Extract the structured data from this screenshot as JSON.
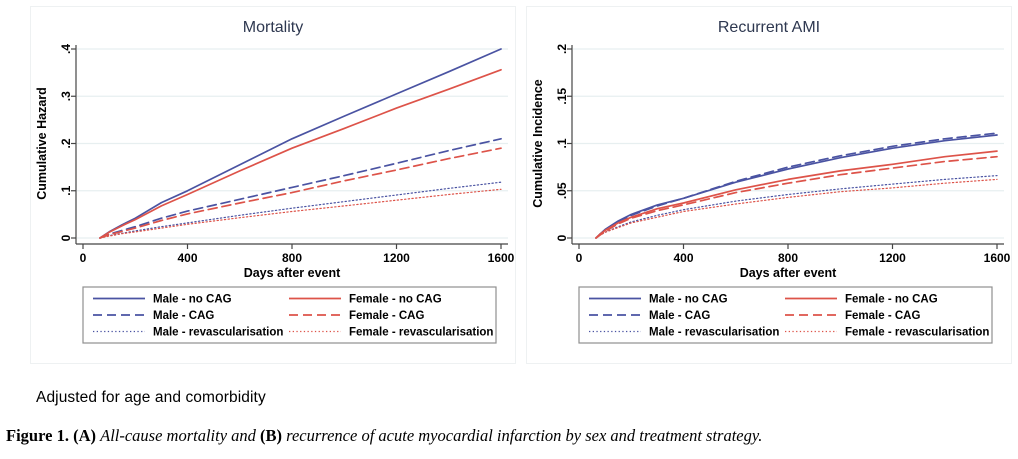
{
  "page": {
    "adjusted_note": "Adjusted for age and comorbidity",
    "caption": {
      "prefix": "Figure 1.",
      "part_a_label": "(A)",
      "part_a_text": "All-cause mortality and",
      "part_b_label": "(B)",
      "part_b_text": "recurrence of acute myocardial infarction by sex and treatment strategy."
    }
  },
  "colors": {
    "male_blue": "#4a53a2",
    "female_red": "#dd5349",
    "title_navy": "#2e3850",
    "grid": "#e7eff0",
    "axis": "#454545",
    "legend_border": "#8f8f8f"
  },
  "chart_data": [
    {
      "type": "line",
      "title": "Mortality",
      "xlabel": "Days after event",
      "ylabel": "Cumulative Hazard",
      "xlim": [
        0,
        1660
      ],
      "ylim": [
        0,
        0.4
      ],
      "xticks": [
        0,
        400,
        800,
        1200,
        1600
      ],
      "yticks": [
        0,
        0.1,
        0.2,
        0.3,
        0.4
      ],
      "ytick_labels": [
        "0",
        ".1",
        ".2",
        ".3",
        ".4"
      ],
      "grid": true,
      "legend_position": "bottom",
      "x": [
        65,
        100,
        150,
        200,
        300,
        400,
        600,
        800,
        1000,
        1200,
        1400,
        1600
      ],
      "series": [
        {
          "name": "Male - no CAG",
          "color": "#4a53a2",
          "style": "solid",
          "values": [
            0,
            0.013,
            0.028,
            0.042,
            0.075,
            0.1,
            0.155,
            0.21,
            0.258,
            0.305,
            0.352,
            0.4
          ]
        },
        {
          "name": "Male - CAG",
          "color": "#4a53a2",
          "style": "dashed",
          "values": [
            0,
            0.008,
            0.016,
            0.024,
            0.042,
            0.057,
            0.082,
            0.107,
            0.132,
            0.158,
            0.185,
            0.21
          ]
        },
        {
          "name": "Male - revascularisation",
          "color": "#4a53a2",
          "style": "dotted",
          "values": [
            0,
            0.005,
            0.01,
            0.015,
            0.024,
            0.032,
            0.048,
            0.063,
            0.077,
            0.091,
            0.105,
            0.118
          ]
        },
        {
          "name": "Female - no CAG",
          "color": "#dd5349",
          "style": "solid",
          "values": [
            0,
            0.012,
            0.026,
            0.039,
            0.068,
            0.092,
            0.142,
            0.19,
            0.232,
            0.275,
            0.315,
            0.356
          ]
        },
        {
          "name": "Female - CAG",
          "color": "#dd5349",
          "style": "dashed",
          "values": [
            0,
            0.007,
            0.014,
            0.021,
            0.037,
            0.051,
            0.074,
            0.096,
            0.121,
            0.144,
            0.168,
            0.19
          ]
        },
        {
          "name": "Female - revascularisation",
          "color": "#dd5349",
          "style": "dotted",
          "values": [
            0,
            0.004,
            0.009,
            0.013,
            0.021,
            0.029,
            0.043,
            0.056,
            0.068,
            0.08,
            0.092,
            0.103
          ]
        }
      ]
    },
    {
      "type": "line",
      "title": "Recurrent AMI",
      "xlabel": "Days after event",
      "ylabel": "Cumulative Incidence",
      "xlim": [
        0,
        1660
      ],
      "ylim": [
        0,
        0.2
      ],
      "xticks": [
        0,
        400,
        800,
        1200,
        1600
      ],
      "yticks": [
        0,
        0.05,
        0.1,
        0.15,
        0.2
      ],
      "ytick_labels": [
        "0",
        ".05",
        ".1",
        ".15",
        ".2"
      ],
      "grid": true,
      "legend_position": "bottom",
      "x": [
        65,
        80,
        100,
        150,
        200,
        300,
        400,
        600,
        800,
        1000,
        1200,
        1400,
        1600
      ],
      "series": [
        {
          "name": "Male - no CAG",
          "color": "#4a53a2",
          "style": "solid",
          "values": [
            0,
            0.004,
            0.009,
            0.018,
            0.025,
            0.035,
            0.042,
            0.059,
            0.073,
            0.085,
            0.095,
            0.103,
            0.109
          ]
        },
        {
          "name": "Male - CAG",
          "color": "#4a53a2",
          "style": "dashed",
          "values": [
            0,
            0.004,
            0.008,
            0.017,
            0.024,
            0.034,
            0.042,
            0.06,
            0.075,
            0.087,
            0.097,
            0.105,
            0.111
          ]
        },
        {
          "name": "Male - revascularisation",
          "color": "#4a53a2",
          "style": "dotted",
          "values": [
            0,
            0.003,
            0.006,
            0.012,
            0.017,
            0.024,
            0.03,
            0.039,
            0.046,
            0.052,
            0.057,
            0.062,
            0.066
          ]
        },
        {
          "name": "Female - no CAG",
          "color": "#dd5349",
          "style": "solid",
          "values": [
            0,
            0.004,
            0.008,
            0.016,
            0.022,
            0.031,
            0.037,
            0.051,
            0.062,
            0.071,
            0.078,
            0.086,
            0.092
          ]
        },
        {
          "name": "Female - CAG",
          "color": "#dd5349",
          "style": "dashed",
          "values": [
            0,
            0.003,
            0.007,
            0.015,
            0.021,
            0.029,
            0.035,
            0.048,
            0.058,
            0.067,
            0.074,
            0.081,
            0.086
          ]
        },
        {
          "name": "Female - revascularisation",
          "color": "#dd5349",
          "style": "dotted",
          "values": [
            0,
            0.003,
            0.006,
            0.011,
            0.016,
            0.022,
            0.028,
            0.036,
            0.043,
            0.049,
            0.053,
            0.058,
            0.062
          ]
        }
      ]
    }
  ]
}
